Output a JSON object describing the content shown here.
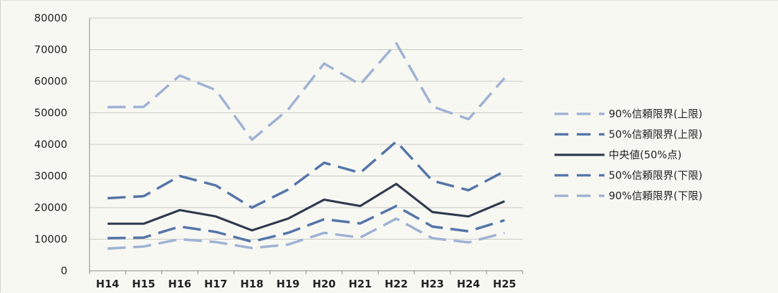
{
  "chart_data": {
    "type": "line",
    "categories": [
      "H14",
      "H15",
      "H16",
      "H17",
      "H18",
      "H19",
      "H20",
      "H21",
      "H22",
      "H23",
      "H24",
      "H25"
    ],
    "ylim": [
      0,
      80000
    ],
    "yticks": [
      0,
      10000,
      20000,
      30000,
      40000,
      50000,
      60000,
      70000,
      80000
    ],
    "grid": true,
    "legend_position": "right",
    "series": [
      {
        "name": "90%信頼限界(上限)",
        "color": "#9fb3d3",
        "style": "dashed",
        "values": [
          51800,
          51900,
          61800,
          57200,
          41500,
          51000,
          65600,
          59000,
          72000,
          52000,
          48000,
          61000
        ]
      },
      {
        "name": "50%信頼限界(上限)",
        "color": "#5576a8",
        "style": "dashed",
        "values": [
          23000,
          23600,
          30000,
          27000,
          20000,
          25700,
          34200,
          31000,
          40900,
          28500,
          25500,
          31500
        ]
      },
      {
        "name": "中央値(50%点)",
        "color": "#2f3a4d",
        "style": "solid",
        "values": [
          14900,
          14900,
          19200,
          17200,
          12800,
          16500,
          22500,
          20500,
          27500,
          18600,
          17200,
          22000
        ]
      },
      {
        "name": "50%信頼限界(下限)",
        "color": "#5576a8",
        "style": "dashed",
        "values": [
          10300,
          10500,
          14000,
          12300,
          9200,
          12000,
          16300,
          15000,
          20500,
          14000,
          12500,
          16000
        ]
      },
      {
        "name": "90%信頼限界(下限)",
        "color": "#9fb3d3",
        "style": "dashed",
        "values": [
          7000,
          7700,
          10000,
          9100,
          7200,
          8300,
          12000,
          10500,
          16500,
          10300,
          9000,
          12000
        ]
      }
    ]
  }
}
